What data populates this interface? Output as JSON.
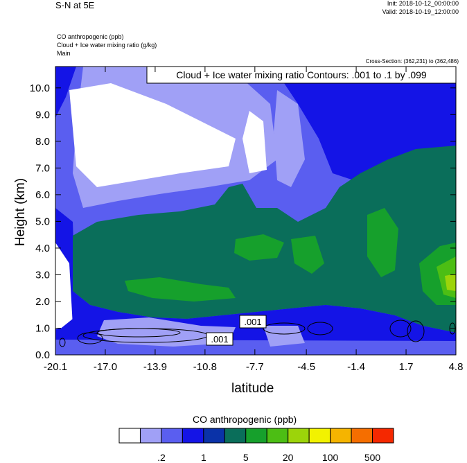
{
  "header": {
    "title": "S-N at 5E",
    "init": "Init: 2018-10-12_00:00:00",
    "valid": "Valid: 2018-10-19_12:00:00",
    "subtitle_lines": [
      "CO anthropogenic   (ppb)",
      "Cloud + Ice water mixing ratio   (g/kg)",
      "Main"
    ],
    "cross_section": "Cross-Section: (362,231) to (362,486)"
  },
  "chart_data": {
    "type": "heatmap",
    "contour_title": "Cloud + Ice water mixing ratio Contours: .001 to .1 by .099",
    "contour_labels": [
      ".001",
      ".001"
    ],
    "xlabel": "latitude",
    "ylabel": "Height (km)",
    "x_ticks": [
      "-20.1",
      "-17.0",
      "-13.9",
      "-10.8",
      "-7.7",
      "-4.5",
      "-1.4",
      "1.7",
      "4.8"
    ],
    "y_ticks": [
      "0.0",
      "1.0",
      "2.0",
      "3.0",
      "4.0",
      "5.0",
      "6.0",
      "7.0",
      "8.0",
      "9.0",
      "10.0"
    ],
    "xlim": [
      -20.1,
      4.8
    ],
    "ylim": [
      0.0,
      10.8
    ],
    "colorbar": {
      "title": "CO anthropogenic  (ppb)",
      "labels": [
        ".2",
        "1",
        "5",
        "20",
        "100",
        "500"
      ],
      "colors": [
        "#ffffff",
        "#a0a0f6",
        "#5a5ef0",
        "#1414e6",
        "#0a32a8",
        "#0a6e5a",
        "#16a02c",
        "#4cbe14",
        "#9cd40a",
        "#f2f200",
        "#f5b400",
        "#f56e00",
        "#f52800"
      ]
    }
  }
}
